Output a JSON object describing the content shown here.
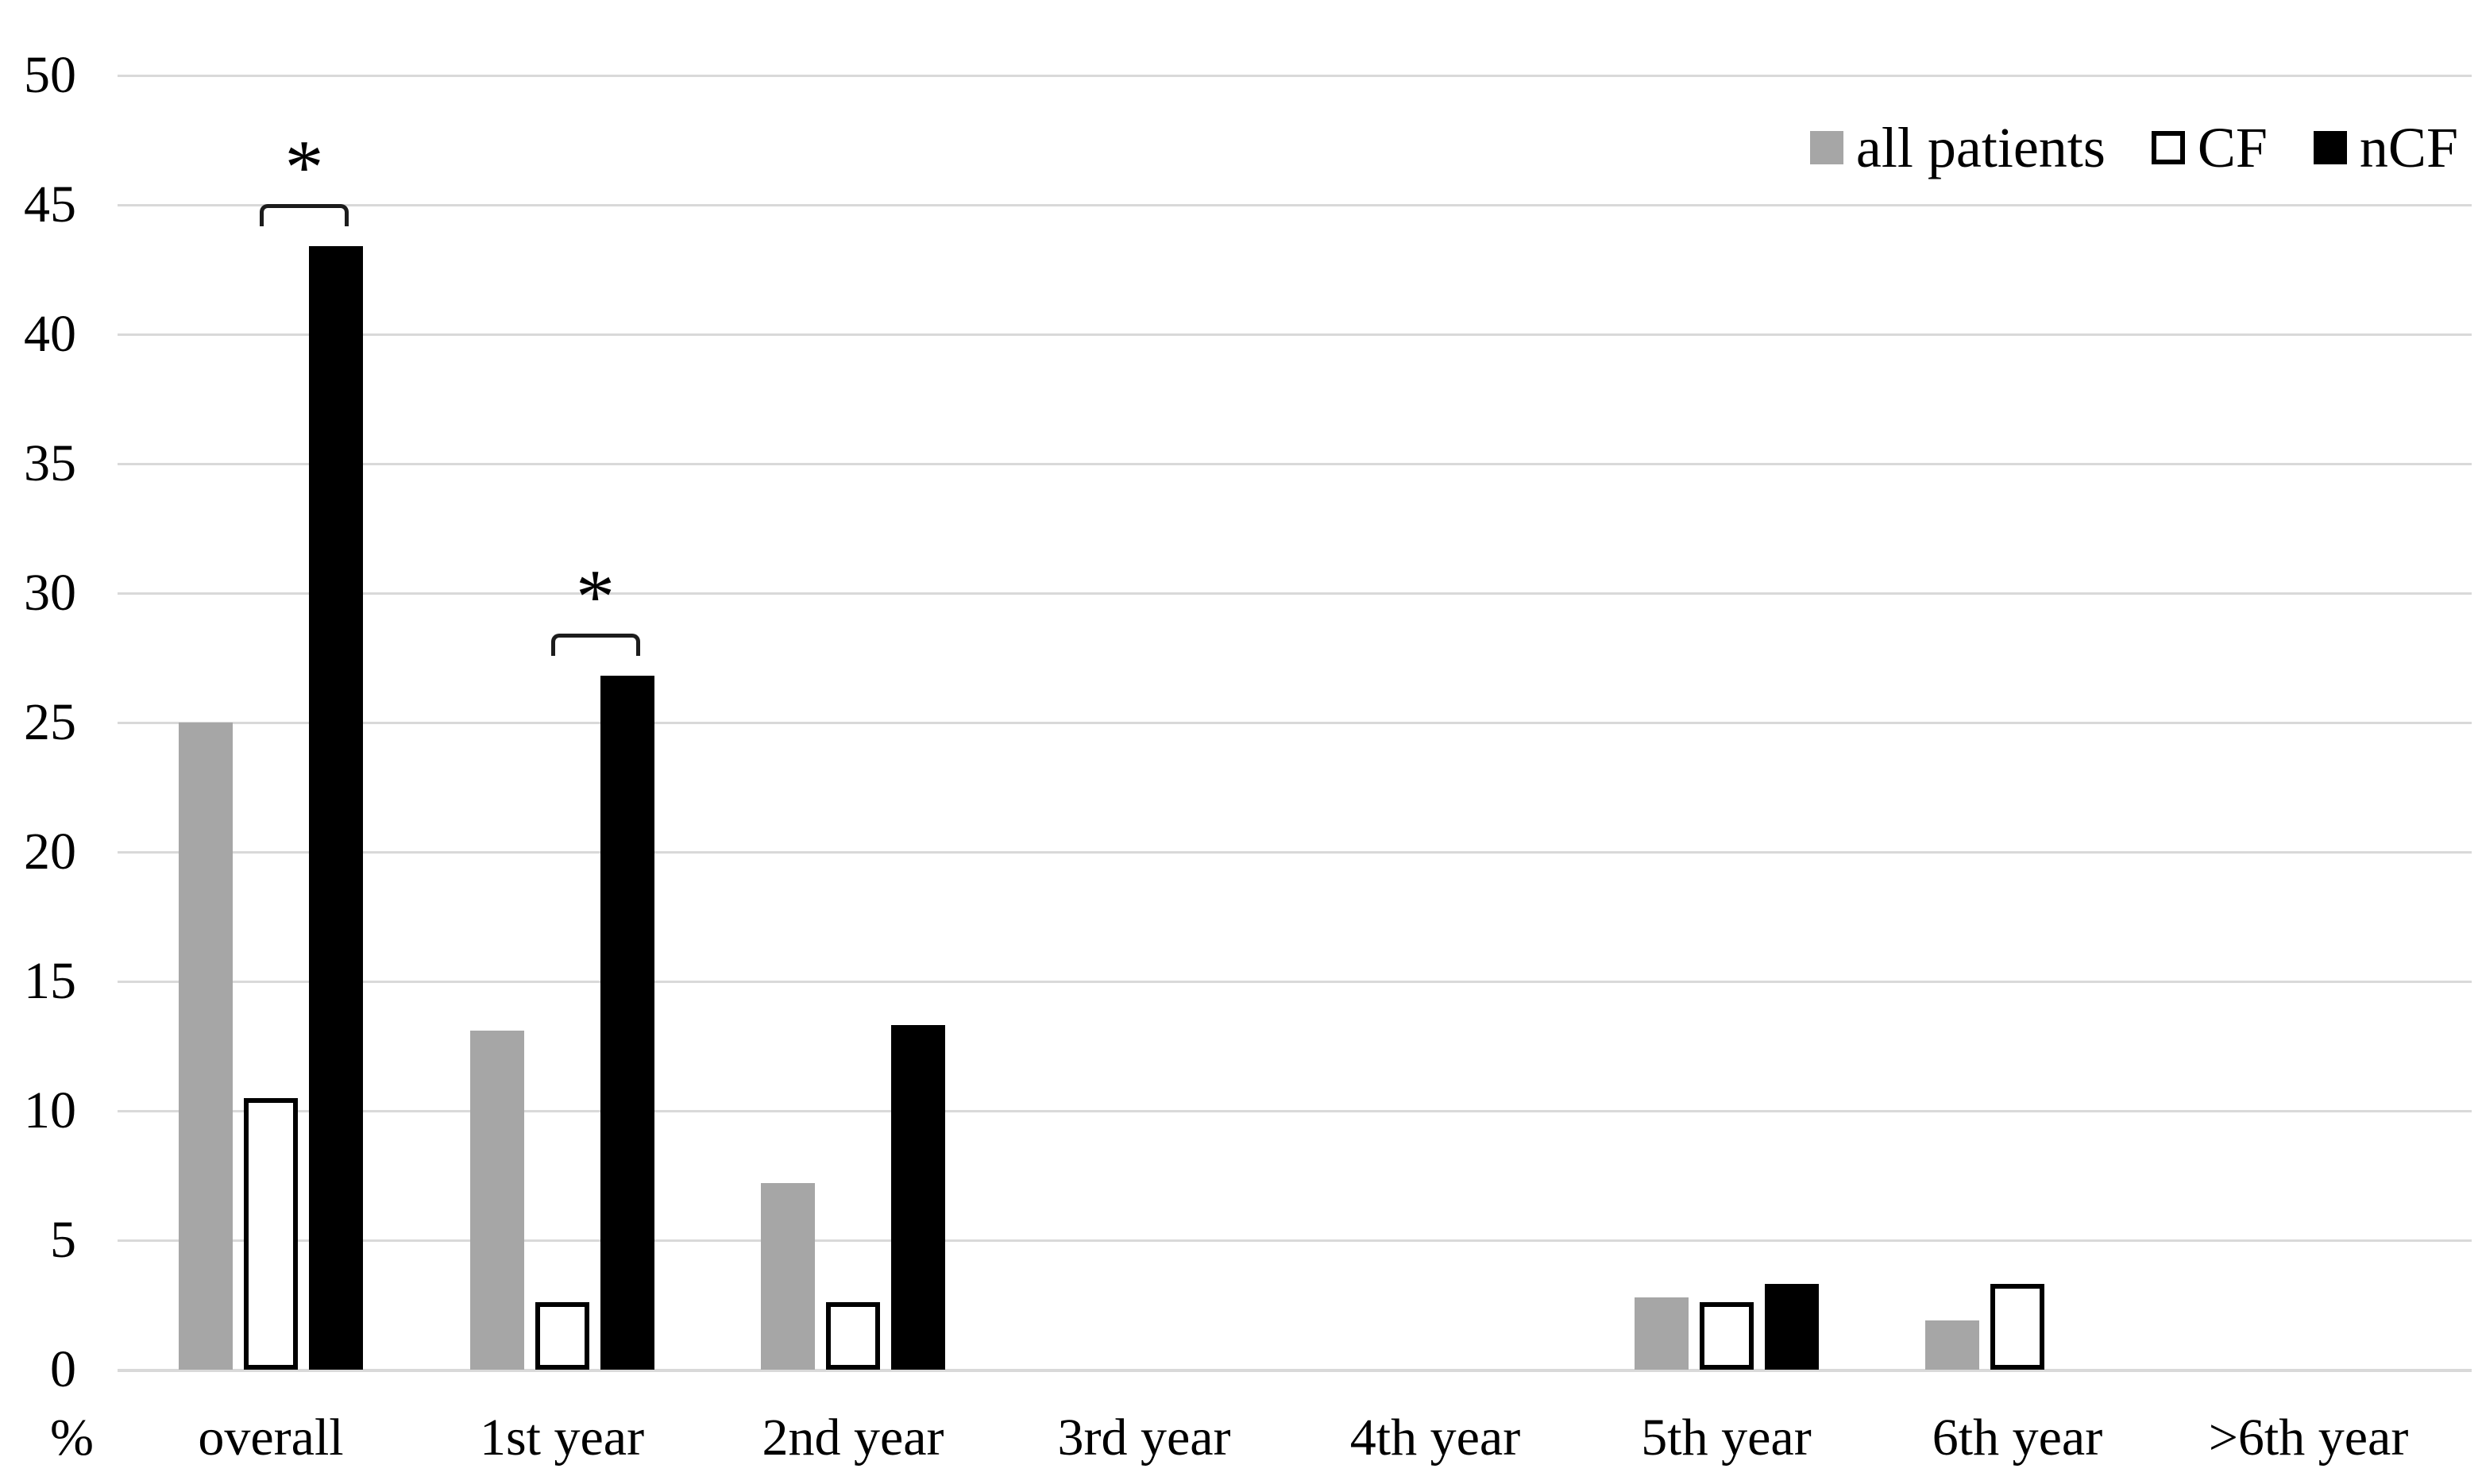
{
  "chart_data": {
    "type": "bar",
    "title": "",
    "xlabel": "",
    "ylabel": "%",
    "ylim": [
      0,
      50
    ],
    "yticks": [
      0,
      5,
      10,
      15,
      20,
      25,
      30,
      35,
      40,
      45,
      50
    ],
    "grid": "horizontal",
    "legend_position": "top-right",
    "categories": [
      "overall",
      "1st year",
      "2nd year",
      "3rd year",
      "4th year",
      "5th year",
      "6th year",
      ">6th year"
    ],
    "series": [
      {
        "name": "all patients",
        "fill": "#a6a6a6",
        "border": null,
        "values": [
          25.0,
          13.1,
          7.2,
          0,
          0,
          2.8,
          1.9,
          0
        ]
      },
      {
        "name": "CF",
        "fill": "#ffffff",
        "border": "#000000",
        "values": [
          10.5,
          2.6,
          2.6,
          0,
          0,
          2.6,
          3.3,
          0
        ]
      },
      {
        "name": "nCF",
        "fill": "#000000",
        "border": null,
        "values": [
          43.4,
          26.8,
          13.3,
          0,
          0,
          3.3,
          0,
          0
        ]
      }
    ],
    "annotations": [
      {
        "type": "significance-bracket",
        "label": "*",
        "category": "overall",
        "between": [
          "CF",
          "nCF"
        ]
      },
      {
        "type": "significance-bracket",
        "label": "*",
        "category": "1st year",
        "between": [
          "CF",
          "nCF"
        ]
      }
    ]
  },
  "colors": {
    "background": "#ffffff",
    "gridline": "#d9d9d9",
    "bracket": "#1c1c1c",
    "text": "#000000"
  }
}
